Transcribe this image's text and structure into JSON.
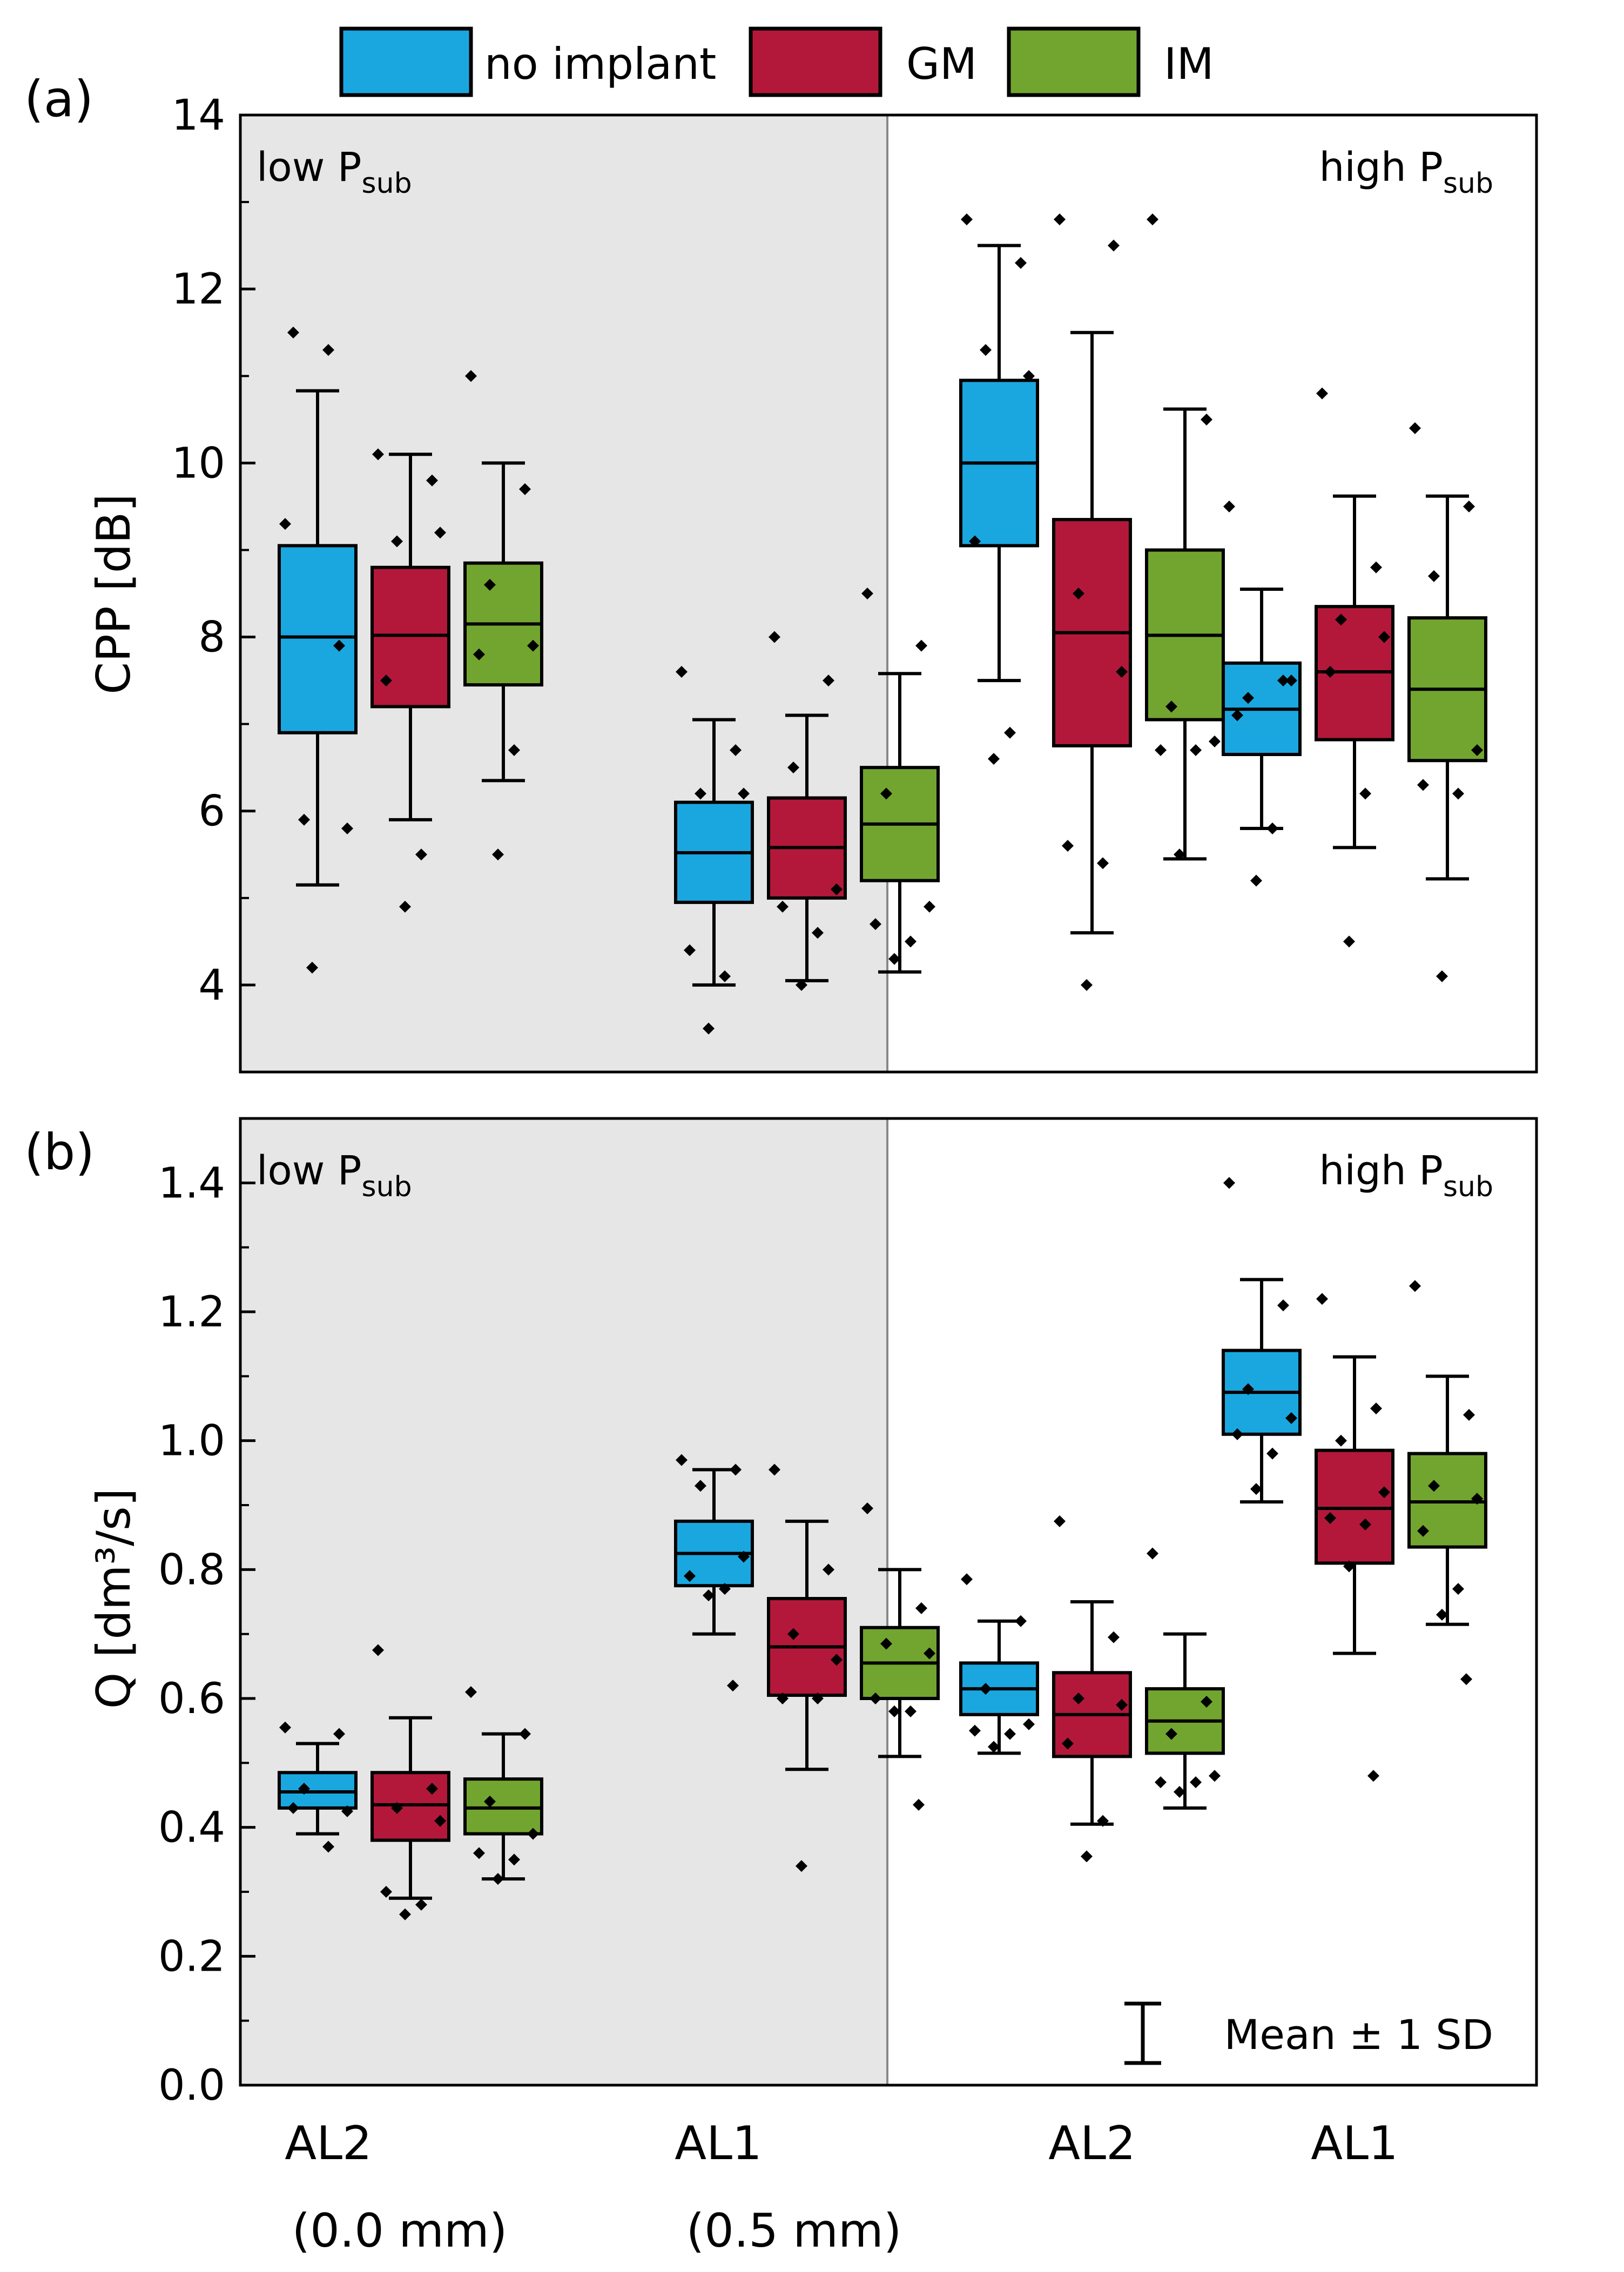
{
  "legend": {
    "items": [
      {
        "label": "no implant",
        "color": "#1aa7e0"
      },
      {
        "label": "GM",
        "color": "#b3183a"
      },
      {
        "label": "IM",
        "color": "#72a52f"
      }
    ]
  },
  "categories": [
    {
      "label": "AL2",
      "sub": "(0.0 mm)"
    },
    {
      "label": "AL1",
      "sub": "(0.5 mm)"
    },
    {
      "label": "AL2",
      "sub": ""
    },
    {
      "label": "AL1",
      "sub": ""
    }
  ],
  "regions": {
    "low": {
      "main": "low P",
      "sub": "sub"
    },
    "high": {
      "main": "high P",
      "sub": "sub"
    }
  },
  "note": "Mean ± 1 SD",
  "chart_data": [
    {
      "type": "box",
      "panel": "(a)",
      "ylabel": "CPP [dB]",
      "ylim": [
        3,
        14
      ],
      "yticks": [
        4,
        6,
        8,
        10,
        12,
        14
      ],
      "yticks_fmt": 0,
      "shaded_region": "low P_sub (AL2 0.0 mm, AL1 0.5 mm)",
      "groups": [
        [
          {
            "series": "no implant",
            "q1": 6.9,
            "median": 8.0,
            "q3": 9.05,
            "whisker_low": 5.15,
            "whisker_high": 10.83,
            "points": [
              9.3,
              7.9,
              5.9,
              5.8,
              11.5,
              11.3,
              4.2
            ]
          },
          {
            "series": "GM",
            "q1": 7.2,
            "median": 8.02,
            "q3": 8.8,
            "whisker_low": 5.9,
            "whisker_high": 10.1,
            "points": [
              10.1,
              9.8,
              9.1,
              9.2,
              7.5,
              5.5,
              4.9
            ]
          },
          {
            "series": "IM",
            "q1": 7.45,
            "median": 8.15,
            "q3": 8.85,
            "whisker_low": 6.35,
            "whisker_high": 10.0,
            "points": [
              11.0,
              9.7,
              8.6,
              7.9,
              7.8,
              6.7,
              5.5
            ]
          }
        ],
        [
          {
            "series": "no implant",
            "q1": 4.95,
            "median": 5.52,
            "q3": 6.1,
            "whisker_low": 4.0,
            "whisker_high": 7.05,
            "points": [
              7.6,
              6.7,
              6.2,
              6.2,
              4.4,
              4.1,
              3.5
            ]
          },
          {
            "series": "GM",
            "q1": 5.0,
            "median": 5.58,
            "q3": 6.15,
            "whisker_low": 4.05,
            "whisker_high": 7.1,
            "points": [
              8.0,
              7.5,
              6.5,
              5.1,
              4.9,
              4.6,
              4.0
            ]
          },
          {
            "series": "IM",
            "q1": 5.2,
            "median": 5.85,
            "q3": 6.5,
            "whisker_low": 4.15,
            "whisker_high": 7.58,
            "points": [
              8.5,
              7.9,
              6.2,
              4.9,
              4.7,
              4.5,
              4.3
            ]
          }
        ],
        [
          {
            "series": "no implant",
            "q1": 9.05,
            "median": 10.0,
            "q3": 10.95,
            "whisker_low": 7.5,
            "whisker_high": 12.5,
            "points": [
              12.8,
              12.3,
              11.3,
              11.0,
              9.1,
              6.9,
              6.6
            ]
          },
          {
            "series": "GM",
            "q1": 6.75,
            "median": 8.05,
            "q3": 9.35,
            "whisker_low": 4.6,
            "whisker_high": 11.5,
            "points": [
              12.8,
              12.5,
              8.5,
              7.6,
              5.6,
              5.4,
              4.0
            ]
          },
          {
            "series": "IM",
            "q1": 7.05,
            "median": 8.02,
            "q3": 9.0,
            "whisker_low": 5.45,
            "whisker_high": 10.62,
            "points": [
              12.8,
              10.5,
              7.2,
              6.8,
              6.7,
              6.7,
              5.5
            ]
          }
        ],
        [
          {
            "series": "no implant",
            "q1": 6.65,
            "median": 7.17,
            "q3": 7.7,
            "whisker_low": 5.8,
            "whisker_high": 8.55,
            "points": [
              9.5,
              7.5,
              7.3,
              7.5,
              7.1,
              5.8,
              5.2
            ]
          },
          {
            "series": "GM",
            "q1": 6.82,
            "median": 7.6,
            "q3": 8.35,
            "whisker_low": 5.58,
            "whisker_high": 9.62,
            "points": [
              10.8,
              8.8,
              8.2,
              8.0,
              7.6,
              6.2,
              4.5
            ]
          },
          {
            "series": "IM",
            "q1": 6.58,
            "median": 7.4,
            "q3": 8.22,
            "whisker_low": 5.22,
            "whisker_high": 9.62,
            "points": [
              10.4,
              9.5,
              8.7,
              6.7,
              6.3,
              6.2,
              4.1
            ]
          }
        ]
      ]
    },
    {
      "type": "box",
      "panel": "(b)",
      "ylabel": "Q [dm³/s]",
      "ylim": [
        0,
        1.5
      ],
      "yticks": [
        0,
        0.2,
        0.4,
        0.6,
        0.8,
        1.0,
        1.2,
        1.4
      ],
      "yticks_fmt": 1,
      "shaded_region": "low P_sub (AL2 0.0 mm, AL1 0.5 mm)",
      "groups": [
        [
          {
            "series": "no implant",
            "q1": 0.43,
            "median": 0.455,
            "q3": 0.485,
            "whisker_low": 0.39,
            "whisker_high": 0.53,
            "points": [
              0.555,
              0.545,
              0.46,
              0.425,
              0.43,
              0.37
            ]
          },
          {
            "series": "GM",
            "q1": 0.38,
            "median": 0.435,
            "q3": 0.485,
            "whisker_low": 0.29,
            "whisker_high": 0.57,
            "points": [
              0.675,
              0.46,
              0.43,
              0.41,
              0.3,
              0.28,
              0.265
            ]
          },
          {
            "series": "IM",
            "q1": 0.39,
            "median": 0.43,
            "q3": 0.475,
            "whisker_low": 0.32,
            "whisker_high": 0.545,
            "points": [
              0.61,
              0.545,
              0.44,
              0.39,
              0.36,
              0.35,
              0.32
            ]
          }
        ],
        [
          {
            "series": "no implant",
            "q1": 0.775,
            "median": 0.825,
            "q3": 0.875,
            "whisker_low": 0.7,
            "whisker_high": 0.955,
            "points": [
              0.97,
              0.955,
              0.93,
              0.82,
              0.79,
              0.77,
              0.76,
              0.62
            ]
          },
          {
            "series": "GM",
            "q1": 0.605,
            "median": 0.68,
            "q3": 0.755,
            "whisker_low": 0.49,
            "whisker_high": 0.875,
            "points": [
              0.955,
              0.8,
              0.7,
              0.66,
              0.6,
              0.6,
              0.34
            ]
          },
          {
            "series": "IM",
            "q1": 0.6,
            "median": 0.655,
            "q3": 0.71,
            "whisker_low": 0.51,
            "whisker_high": 0.8,
            "points": [
              0.895,
              0.74,
              0.685,
              0.67,
              0.6,
              0.58,
              0.58,
              0.435
            ]
          }
        ],
        [
          {
            "series": "no implant",
            "q1": 0.575,
            "median": 0.615,
            "q3": 0.655,
            "whisker_low": 0.515,
            "whisker_high": 0.72,
            "points": [
              0.785,
              0.72,
              0.615,
              0.56,
              0.55,
              0.545,
              0.525
            ]
          },
          {
            "series": "GM",
            "q1": 0.51,
            "median": 0.575,
            "q3": 0.64,
            "whisker_low": 0.405,
            "whisker_high": 0.75,
            "points": [
              0.875,
              0.695,
              0.6,
              0.59,
              0.53,
              0.41,
              0.355
            ]
          },
          {
            "series": "IM",
            "q1": 0.515,
            "median": 0.565,
            "q3": 0.615,
            "whisker_low": 0.43,
            "whisker_high": 0.7,
            "points": [
              0.825,
              0.595,
              0.545,
              0.48,
              0.47,
              0.47,
              0.455
            ]
          }
        ],
        [
          {
            "series": "no implant",
            "q1": 1.01,
            "median": 1.075,
            "q3": 1.14,
            "whisker_low": 0.905,
            "whisker_high": 1.25,
            "points": [
              1.4,
              1.21,
              1.08,
              1.035,
              1.01,
              0.98,
              0.925
            ]
          },
          {
            "series": "GM",
            "q1": 0.81,
            "median": 0.895,
            "q3": 0.985,
            "whisker_low": 0.67,
            "whisker_high": 1.13,
            "points": [
              1.22,
              1.05,
              1.0,
              0.92,
              0.88,
              0.87,
              0.805,
              0.48
            ]
          },
          {
            "series": "IM",
            "q1": 0.835,
            "median": 0.905,
            "q3": 0.98,
            "whisker_low": 0.715,
            "whisker_high": 1.1,
            "points": [
              1.24,
              1.04,
              0.93,
              0.91,
              0.86,
              0.77,
              0.73,
              0.63
            ]
          }
        ]
      ]
    }
  ]
}
